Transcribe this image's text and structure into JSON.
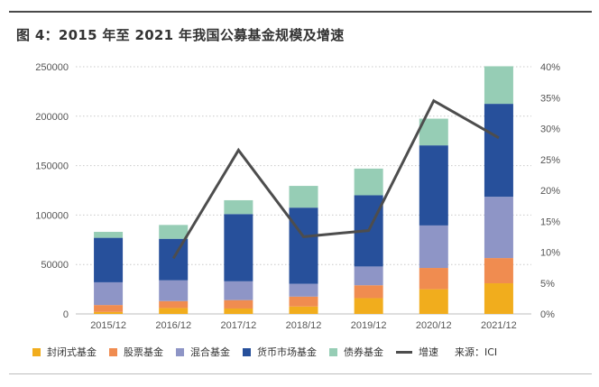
{
  "title": "图 4：2015 年至 2021 年我国公募基金规模及增速",
  "source_label": "来源：ICI",
  "colors": {
    "封闭式基金": "#f1ad1d",
    "股票基金": "#f08c50",
    "混合基金": "#8e95c6",
    "货币市场基金": "#27509b",
    "债券基金": "#96cdb5",
    "增速": "#4d4d4d"
  },
  "chart_data": {
    "type": "bar",
    "stacked": true,
    "categories": [
      "2015/12",
      "2016/12",
      "2017/12",
      "2018/12",
      "2019/12",
      "2020/12",
      "2021/12"
    ],
    "series": [
      {
        "name": "封闭式基金",
        "values": [
          2000,
          6000,
          5500,
          7500,
          16000,
          25000,
          31000
        ]
      },
      {
        "name": "股票基金",
        "values": [
          7000,
          7000,
          8500,
          10000,
          13000,
          21500,
          25500
        ]
      },
      {
        "name": "混合基金",
        "values": [
          23000,
          21000,
          19000,
          13000,
          19000,
          43000,
          62000
        ]
      },
      {
        "name": "货币市场基金",
        "values": [
          45000,
          42000,
          68000,
          77000,
          72000,
          81000,
          94000
        ]
      },
      {
        "name": "债券基金",
        "values": [
          6000,
          14000,
          14000,
          22000,
          27000,
          27000,
          38000
        ]
      }
    ],
    "line_series": {
      "name": "增速",
      "categories": [
        "2016/12",
        "2017/12",
        "2018/12",
        "2019/12",
        "2020/12",
        "2021/12"
      ],
      "values": [
        9,
        26.5,
        12.5,
        13.5,
        34.5,
        28.5
      ],
      "axis": "right"
    },
    "ylim_left": [
      0,
      250000
    ],
    "left_ticks": [
      "0",
      "50000",
      "100000",
      "150000",
      "200000",
      "250000"
    ],
    "ylim_right": [
      0,
      40
    ],
    "right_ticks": [
      "0%",
      "5%",
      "10%",
      "15%",
      "20%",
      "25%",
      "30%",
      "35%",
      "40%"
    ],
    "grid": true,
    "legend_position": "bottom"
  }
}
